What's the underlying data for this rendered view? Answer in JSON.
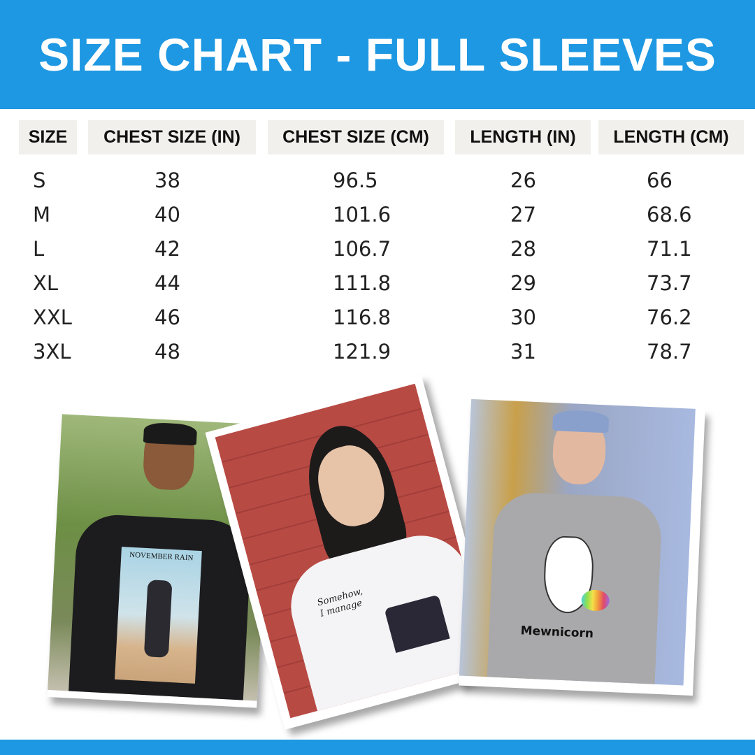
{
  "title": "SIZE CHART - FULL SLEEVES",
  "table": {
    "headers": [
      "SIZE",
      "CHEST SIZE (IN)",
      "CHEST SIZE (CM)",
      "LENGTH (IN)",
      "LENGTH (CM)"
    ],
    "rows": [
      [
        "S",
        "38",
        "96.5",
        "26",
        "66"
      ],
      [
        "M",
        "40",
        "101.6",
        "27",
        "68.6"
      ],
      [
        "L",
        "42",
        "106.7",
        "28",
        "71.1"
      ],
      [
        "XL",
        "44",
        "111.8",
        "29",
        "73.7"
      ],
      [
        "XXL",
        "46",
        "116.8",
        "30",
        "76.2"
      ],
      [
        "3XL",
        "48",
        "121.9",
        "31",
        "78.7"
      ]
    ]
  },
  "photos": [
    {
      "shirt_text": "NOVEMBER RAIN",
      "shirt_color": "#1c1c1e"
    },
    {
      "shirt_text_1": "Somehow,",
      "shirt_text_2": "I manage",
      "shirt_color": "#f4f4f6"
    },
    {
      "shirt_text": "Mewnicorn",
      "shirt_color": "#a9a9ab"
    }
  ],
  "colors": {
    "brand": "#1e98e2",
    "header_cell": "#f1f0ec"
  }
}
